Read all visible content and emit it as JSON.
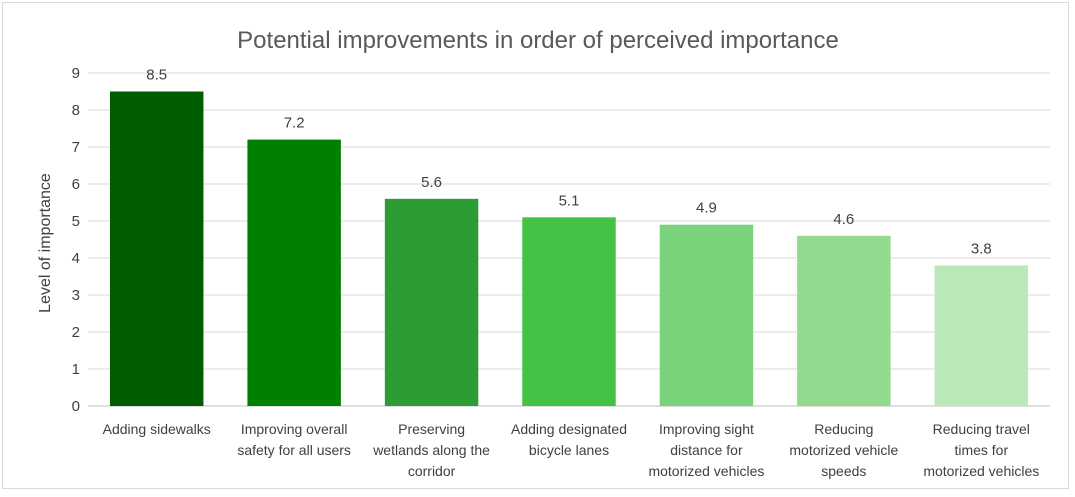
{
  "chart_data": {
    "type": "bar",
    "title": "Potential improvements in order of perceived importance",
    "xlabel": "",
    "ylabel": "Level of importance",
    "ylim": [
      0,
      9
    ],
    "yticks": [
      0,
      1,
      2,
      3,
      4,
      5,
      6,
      7,
      8,
      9
    ],
    "grid": true,
    "categories": [
      [
        "Adding sidewalks"
      ],
      [
        "Improving overall",
        "safety for all users"
      ],
      [
        "Preserving",
        "wetlands along the",
        "corridor"
      ],
      [
        "Adding designated",
        "bicycle lanes"
      ],
      [
        "Improving sight",
        "distance for",
        "motorized vehicles"
      ],
      [
        "Reducing",
        "motorized vehicle",
        "speeds"
      ],
      [
        "Reducing travel",
        "times for",
        "motorized vehicles"
      ]
    ],
    "values": [
      8.5,
      7.2,
      5.6,
      5.1,
      4.9,
      4.6,
      3.8
    ],
    "data_labels": [
      "8.5",
      "7.2",
      "5.6",
      "5.1",
      "4.9",
      "4.6",
      "3.8"
    ],
    "colors": [
      "#005e00",
      "#008000",
      "#2e9c35",
      "#43c246",
      "#78d37a",
      "#93da8f",
      "#bbe8b8"
    ]
  }
}
